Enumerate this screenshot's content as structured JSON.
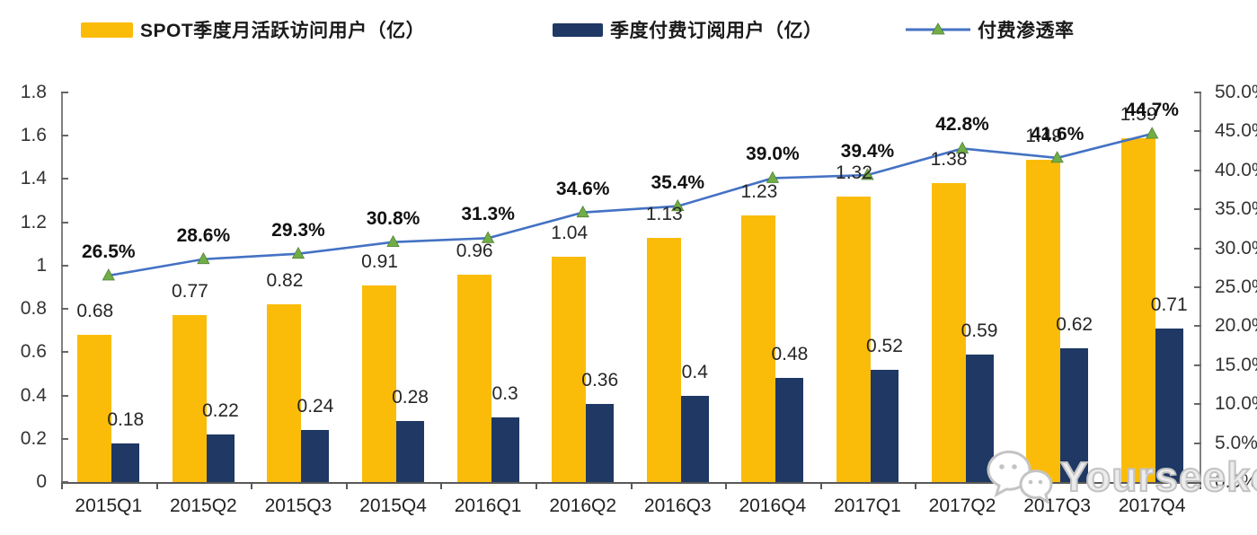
{
  "legend": {
    "items": [
      {
        "label": "SPOT季度月活跃访问用户（亿）",
        "swatch_color": "#FBBC09",
        "type": "bar"
      },
      {
        "label": "季度付费订阅用户（亿）",
        "swatch_color": "#1F3864",
        "type": "bar"
      },
      {
        "label": "付费渗透率",
        "line_color": "#4472C4",
        "marker_color": "#70AD47",
        "type": "line"
      }
    ]
  },
  "watermark": {
    "text": "Yourseeker",
    "icon": "wechat-icon"
  },
  "colors": {
    "mau_bar": "#FBBC09",
    "sub_bar": "#1F3864",
    "line": "#4472C4",
    "marker": "#70AD47",
    "axis": "#808080",
    "label_text": "#262626"
  },
  "chart_data": {
    "type": "combo-bar-line",
    "title": "",
    "categories": [
      "2015Q1",
      "2015Q2",
      "2015Q3",
      "2015Q4",
      "2016Q1",
      "2016Q2",
      "2016Q3",
      "2016Q4",
      "2017Q1",
      "2017Q2",
      "2017Q3",
      "2017Q4"
    ],
    "series": [
      {
        "name": "SPOT季度月活跃访问用户（亿）",
        "type": "bar",
        "axis": "left",
        "color": "#FBBC09",
        "values": [
          0.68,
          0.77,
          0.82,
          0.91,
          0.96,
          1.04,
          1.13,
          1.23,
          1.32,
          1.38,
          1.49,
          1.59
        ],
        "data_labels": [
          "0.68",
          "0.77",
          "0.82",
          "0.91",
          "0.96",
          "1.04",
          "1.13",
          "1.23",
          "1.32",
          "1.38",
          "1.49",
          "1.59"
        ]
      },
      {
        "name": "季度付费订阅用户（亿）",
        "type": "bar",
        "axis": "left",
        "color": "#1F3864",
        "values": [
          0.18,
          0.22,
          0.24,
          0.28,
          0.3,
          0.36,
          0.4,
          0.48,
          0.52,
          0.59,
          0.62,
          0.71
        ],
        "data_labels": [
          "0.18",
          "0.22",
          "0.24",
          "0.28",
          "0.3",
          "0.36",
          "0.4",
          "0.48",
          "0.52",
          "0.59",
          "0.62",
          "0.71"
        ]
      },
      {
        "name": "付费渗透率",
        "type": "line",
        "axis": "right",
        "color": "#4472C4",
        "marker": "triangle",
        "marker_color": "#70AD47",
        "values": [
          26.5,
          28.6,
          29.3,
          30.8,
          31.3,
          34.6,
          35.4,
          39.0,
          39.4,
          42.8,
          41.6,
          44.7
        ],
        "data_labels": [
          "26.5%",
          "28.6%",
          "29.3%",
          "30.8%",
          "31.3%",
          "34.6%",
          "35.4%",
          "39.0%",
          "39.4%",
          "42.8%",
          "41.6%",
          "44.7%"
        ]
      }
    ],
    "left_axis": {
      "min": 0,
      "max": 1.8,
      "step": 0.2,
      "tick_labels": [
        "1.8",
        "1.6",
        "1.4",
        "1.2",
        "1",
        "0.8",
        "0.6",
        "0.4",
        "0.2",
        "0"
      ]
    },
    "right_axis": {
      "min": 0,
      "max": 50,
      "step": 5,
      "unit": "%",
      "tick_labels": [
        "50.0%",
        "45.0%",
        "40.0%",
        "35.0%",
        "30.0%",
        "25.0%",
        "20.0%",
        "15.0%",
        "10.0%",
        "5.0%",
        "0.0%"
      ]
    },
    "grid": false,
    "legend_position": "top"
  }
}
